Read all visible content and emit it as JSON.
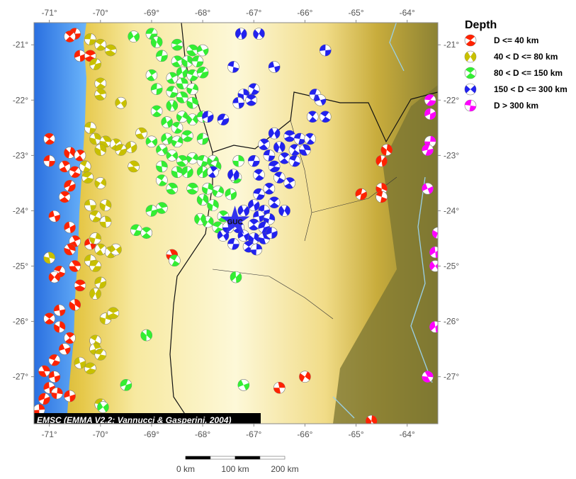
{
  "map": {
    "lon_range": [
      -71.3,
      -63.4
    ],
    "lat_range": [
      -27.85,
      -20.6
    ],
    "lon_ticks": [
      {
        "value": -71,
        "label": "-71°"
      },
      {
        "value": -70,
        "label": "-70°"
      },
      {
        "value": -69,
        "label": "-69°"
      },
      {
        "value": -68,
        "label": "-68°"
      },
      {
        "value": -67,
        "label": "-67°"
      },
      {
        "value": -66,
        "label": "-66°"
      },
      {
        "value": -65,
        "label": "-65°"
      },
      {
        "value": -64,
        "label": "-64°"
      }
    ],
    "lat_ticks": [
      {
        "value": -21,
        "label": "-21°"
      },
      {
        "value": -22,
        "label": "-22°"
      },
      {
        "value": -23,
        "label": "-23°"
      },
      {
        "value": -24,
        "label": "-24°"
      },
      {
        "value": -25,
        "label": "-25°"
      },
      {
        "value": -26,
        "label": "-26°"
      },
      {
        "value": -27,
        "label": "-27°"
      }
    ],
    "credit": "EMSC (EMMA V2.2; Vannucci & Gasperini, 2004)",
    "station": {
      "code": "GUC",
      "lon": -67.37,
      "lat": -24.19,
      "color": "#3333ee"
    },
    "colors": {
      "ocean": "#3a8cf0",
      "coast_lowland": "#c8b020",
      "plateau": "#fdf6cc",
      "east_lowland": "#6e6a30"
    }
  },
  "legend": {
    "title": "Depth",
    "items": [
      {
        "label": "D <= 40 km",
        "color": "#ff2200",
        "key": "d40"
      },
      {
        "label": "40 < D <= 80 km",
        "color": "#c8c000",
        "key": "d80"
      },
      {
        "label": "80 < D <= 150 km",
        "color": "#33ee33",
        "key": "d150"
      },
      {
        "label": "150 < D <= 300 km",
        "color": "#2222ee",
        "key": "d300"
      },
      {
        "label": "D > 300 km",
        "color": "#ff00ff",
        "key": "d300plus"
      }
    ]
  },
  "scale_bar": {
    "labels": [
      "0 km",
      "100 km",
      "200 km"
    ]
  },
  "events": {
    "d40": [
      [
        -70.5,
        -20.8
      ],
      [
        -70.6,
        -20.85
      ],
      [
        -70.4,
        -21.2
      ],
      [
        -70.2,
        -21.2
      ],
      [
        -71.0,
        -22.7
      ],
      [
        -70.6,
        -22.95
      ],
      [
        -70.4,
        -23.0
      ],
      [
        -71.0,
        -23.1
      ],
      [
        -70.7,
        -23.2
      ],
      [
        -70.5,
        -23.3
      ],
      [
        -70.3,
        -23.2
      ],
      [
        -70.6,
        -23.55
      ],
      [
        -70.7,
        -23.75
      ],
      [
        -70.9,
        -24.1
      ],
      [
        -70.6,
        -24.3
      ],
      [
        -70.5,
        -24.55
      ],
      [
        -70.6,
        -24.7
      ],
      [
        -70.2,
        -24.6
      ],
      [
        -70.8,
        -25.1
      ],
      [
        -70.5,
        -25.0
      ],
      [
        -70.9,
        -25.2
      ],
      [
        -70.4,
        -25.35
      ],
      [
        -70.5,
        -25.7
      ],
      [
        -70.8,
        -25.8
      ],
      [
        -71.0,
        -25.95
      ],
      [
        -70.8,
        -26.1
      ],
      [
        -70.6,
        -26.3
      ],
      [
        -70.7,
        -26.5
      ],
      [
        -70.9,
        -26.7
      ],
      [
        -71.1,
        -26.9
      ],
      [
        -70.9,
        -27.0
      ],
      [
        -71.0,
        -27.2
      ],
      [
        -71.1,
        -27.4
      ],
      [
        -70.6,
        -27.35
      ],
      [
        -70.85,
        -27.3
      ],
      [
        -71.2,
        -27.6
      ],
      [
        -64.4,
        -22.9
      ],
      [
        -64.5,
        -23.1
      ],
      [
        -64.9,
        -23.7
      ],
      [
        -64.5,
        -23.6
      ],
      [
        -64.5,
        -23.75
      ],
      [
        -66.0,
        -27.0
      ],
      [
        -66.5,
        -27.2
      ],
      [
        -68.6,
        -24.8
      ],
      [
        -64.7,
        -27.8
      ]
    ],
    "d80": [
      [
        -70.2,
        -20.9
      ],
      [
        -70.0,
        -21.0
      ],
      [
        -69.8,
        -21.1
      ],
      [
        -70.1,
        -21.35
      ],
      [
        -70.0,
        -21.7
      ],
      [
        -70.0,
        -21.9
      ],
      [
        -69.6,
        -22.05
      ],
      [
        -70.2,
        -22.5
      ],
      [
        -70.1,
        -22.7
      ],
      [
        -69.9,
        -22.75
      ],
      [
        -70.0,
        -22.9
      ],
      [
        -69.7,
        -22.8
      ],
      [
        -70.3,
        -23.2
      ],
      [
        -70.25,
        -23.4
      ],
      [
        -70.0,
        -23.5
      ],
      [
        -70.2,
        -23.9
      ],
      [
        -69.9,
        -23.9
      ],
      [
        -70.1,
        -24.1
      ],
      [
        -69.9,
        -24.2
      ],
      [
        -70.1,
        -24.5
      ],
      [
        -70.0,
        -24.7
      ],
      [
        -69.8,
        -24.75
      ],
      [
        -69.7,
        -24.7
      ],
      [
        -70.2,
        -24.9
      ],
      [
        -70.1,
        -25.0
      ],
      [
        -70.0,
        -25.3
      ],
      [
        -70.1,
        -25.5
      ],
      [
        -71.0,
        -24.85
      ],
      [
        -69.9,
        -25.95
      ],
      [
        -69.75,
        -25.85
      ],
      [
        -70.1,
        -26.35
      ],
      [
        -70.1,
        -26.5
      ],
      [
        -70.0,
        -26.6
      ],
      [
        -70.4,
        -26.75
      ],
      [
        -70.2,
        -26.85
      ],
      [
        -70.0,
        -27.5
      ],
      [
        -69.35,
        -23.2
      ],
      [
        -69.2,
        -22.6
      ],
      [
        -69.4,
        -22.85
      ],
      [
        -69.6,
        -22.9
      ]
    ],
    "d150": [
      [
        -69.35,
        -20.85
      ],
      [
        -69.0,
        -20.8
      ],
      [
        -68.9,
        -20.95
      ],
      [
        -68.5,
        -21.0
      ],
      [
        -68.2,
        -21.1
      ],
      [
        -68.0,
        -21.1
      ],
      [
        -68.8,
        -21.2
      ],
      [
        -68.5,
        -21.3
      ],
      [
        -68.3,
        -21.3
      ],
      [
        -68.1,
        -21.3
      ],
      [
        -68.4,
        -21.5
      ],
      [
        -68.2,
        -21.55
      ],
      [
        -68.0,
        -21.5
      ],
      [
        -69.0,
        -21.55
      ],
      [
        -68.6,
        -21.6
      ],
      [
        -68.4,
        -21.7
      ],
      [
        -68.2,
        -21.8
      ],
      [
        -68.9,
        -21.8
      ],
      [
        -68.6,
        -21.85
      ],
      [
        -68.4,
        -21.95
      ],
      [
        -68.2,
        -22.05
      ],
      [
        -68.6,
        -22.1
      ],
      [
        -68.9,
        -22.2
      ],
      [
        -68.4,
        -22.3
      ],
      [
        -68.2,
        -22.35
      ],
      [
        -68.7,
        -22.4
      ],
      [
        -68.5,
        -22.5
      ],
      [
        -68.0,
        -22.3
      ],
      [
        -68.7,
        -22.7
      ],
      [
        -68.5,
        -22.75
      ],
      [
        -68.3,
        -22.65
      ],
      [
        -68.0,
        -22.7
      ],
      [
        -69.0,
        -22.75
      ],
      [
        -68.8,
        -22.9
      ],
      [
        -68.6,
        -23.0
      ],
      [
        -68.4,
        -23.1
      ],
      [
        -68.2,
        -23.05
      ],
      [
        -68.0,
        -23.1
      ],
      [
        -67.8,
        -23.1
      ],
      [
        -68.8,
        -23.2
      ],
      [
        -68.5,
        -23.3
      ],
      [
        -68.3,
        -23.3
      ],
      [
        -68.0,
        -23.3
      ],
      [
        -67.75,
        -23.2
      ],
      [
        -68.8,
        -23.45
      ],
      [
        -68.6,
        -23.6
      ],
      [
        -68.2,
        -23.6
      ],
      [
        -67.9,
        -23.6
      ],
      [
        -67.7,
        -23.65
      ],
      [
        -67.45,
        -23.7
      ],
      [
        -68.0,
        -23.8
      ],
      [
        -67.8,
        -23.9
      ],
      [
        -68.8,
        -23.95
      ],
      [
        -69.0,
        -24.0
      ],
      [
        -67.9,
        -24.2
      ],
      [
        -67.7,
        -24.3
      ],
      [
        -67.6,
        -24.1
      ],
      [
        -68.05,
        -24.15
      ],
      [
        -69.3,
        -24.35
      ],
      [
        -69.1,
        -24.4
      ],
      [
        -68.55,
        -24.9
      ],
      [
        -67.35,
        -25.2
      ],
      [
        -69.1,
        -26.25
      ],
      [
        -69.5,
        -27.15
      ],
      [
        -67.2,
        -27.15
      ],
      [
        -69.95,
        -27.55
      ],
      [
        -67.3,
        -23.1
      ],
      [
        -67.35,
        -23.4
      ]
    ],
    "d300": [
      [
        -67.25,
        -20.8
      ],
      [
        -66.9,
        -20.8
      ],
      [
        -67.4,
        -21.4
      ],
      [
        -66.6,
        -21.4
      ],
      [
        -65.6,
        -21.1
      ],
      [
        -67.2,
        -21.9
      ],
      [
        -67.0,
        -21.8
      ],
      [
        -67.05,
        -22.0
      ],
      [
        -67.3,
        -22.05
      ],
      [
        -65.8,
        -21.9
      ],
      [
        -65.7,
        -22.0
      ],
      [
        -65.85,
        -22.3
      ],
      [
        -65.6,
        -22.3
      ],
      [
        -67.9,
        -22.3
      ],
      [
        -67.6,
        -22.35
      ],
      [
        -67.8,
        -23.3
      ],
      [
        -67.4,
        -23.35
      ],
      [
        -66.6,
        -22.6
      ],
      [
        -66.3,
        -22.65
      ],
      [
        -66.1,
        -22.7
      ],
      [
        -65.9,
        -22.7
      ],
      [
        -66.8,
        -22.8
      ],
      [
        -66.5,
        -22.85
      ],
      [
        -66.2,
        -22.9
      ],
      [
        -66.0,
        -22.9
      ],
      [
        -66.7,
        -23.0
      ],
      [
        -66.4,
        -23.05
      ],
      [
        -66.2,
        -23.1
      ],
      [
        -67.0,
        -23.1
      ],
      [
        -66.6,
        -23.2
      ],
      [
        -66.9,
        -23.35
      ],
      [
        -66.5,
        -23.4
      ],
      [
        -66.3,
        -23.5
      ],
      [
        -66.7,
        -23.6
      ],
      [
        -66.6,
        -23.85
      ],
      [
        -66.4,
        -24.0
      ],
      [
        -66.8,
        -24.0
      ],
      [
        -67.0,
        -23.9
      ],
      [
        -67.2,
        -24.0
      ],
      [
        -66.9,
        -24.1
      ],
      [
        -66.7,
        -24.15
      ],
      [
        -67.0,
        -24.25
      ],
      [
        -66.8,
        -24.3
      ],
      [
        -67.3,
        -24.3
      ],
      [
        -67.2,
        -24.45
      ],
      [
        -67.0,
        -24.5
      ],
      [
        -66.8,
        -24.5
      ],
      [
        -67.1,
        -24.65
      ],
      [
        -66.95,
        -24.7
      ],
      [
        -67.6,
        -24.45
      ],
      [
        -67.4,
        -24.6
      ],
      [
        -67.5,
        -24.3
      ],
      [
        -66.9,
        -23.7
      ],
      [
        -66.65,
        -24.4
      ]
    ],
    "d300plus": [
      [
        -63.55,
        -22.0
      ],
      [
        -63.55,
        -22.25
      ],
      [
        -63.55,
        -22.75
      ],
      [
        -63.6,
        -22.9
      ],
      [
        -63.6,
        -23.6
      ],
      [
        -63.4,
        -24.4
      ],
      [
        -63.45,
        -24.75
      ],
      [
        -63.45,
        -25.0
      ],
      [
        -63.45,
        -26.1
      ],
      [
        -63.6,
        -27.0
      ]
    ]
  }
}
